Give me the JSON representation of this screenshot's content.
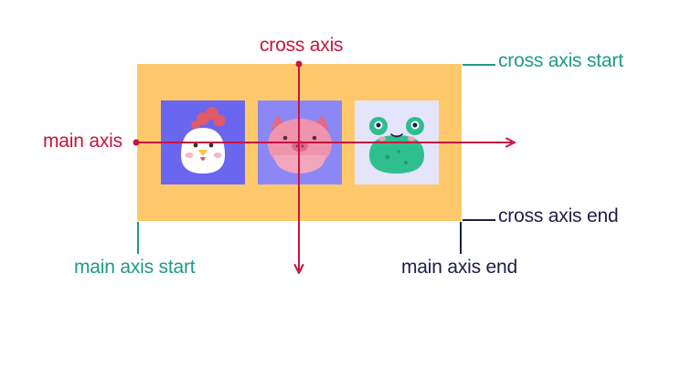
{
  "labels": {
    "cross_axis": "cross axis",
    "cross_axis_start": "cross axis start",
    "main_axis": "main axis",
    "cross_axis_end": "cross axis end",
    "main_axis_start": "main axis start",
    "main_axis_end": "main axis end"
  },
  "items": [
    {
      "icon": "chicken-icon"
    },
    {
      "icon": "pig-icon"
    },
    {
      "icon": "frog-icon"
    }
  ],
  "colors": {
    "container": "#ffc96b",
    "axis": "#c8143f",
    "start_label": "#1e9a87",
    "end_label": "#1b1f4a",
    "item_chicken_bg": "#6a66f0",
    "item_pig_bg": "#8b88f5",
    "item_frog_bg": "#e4e4fa"
  }
}
